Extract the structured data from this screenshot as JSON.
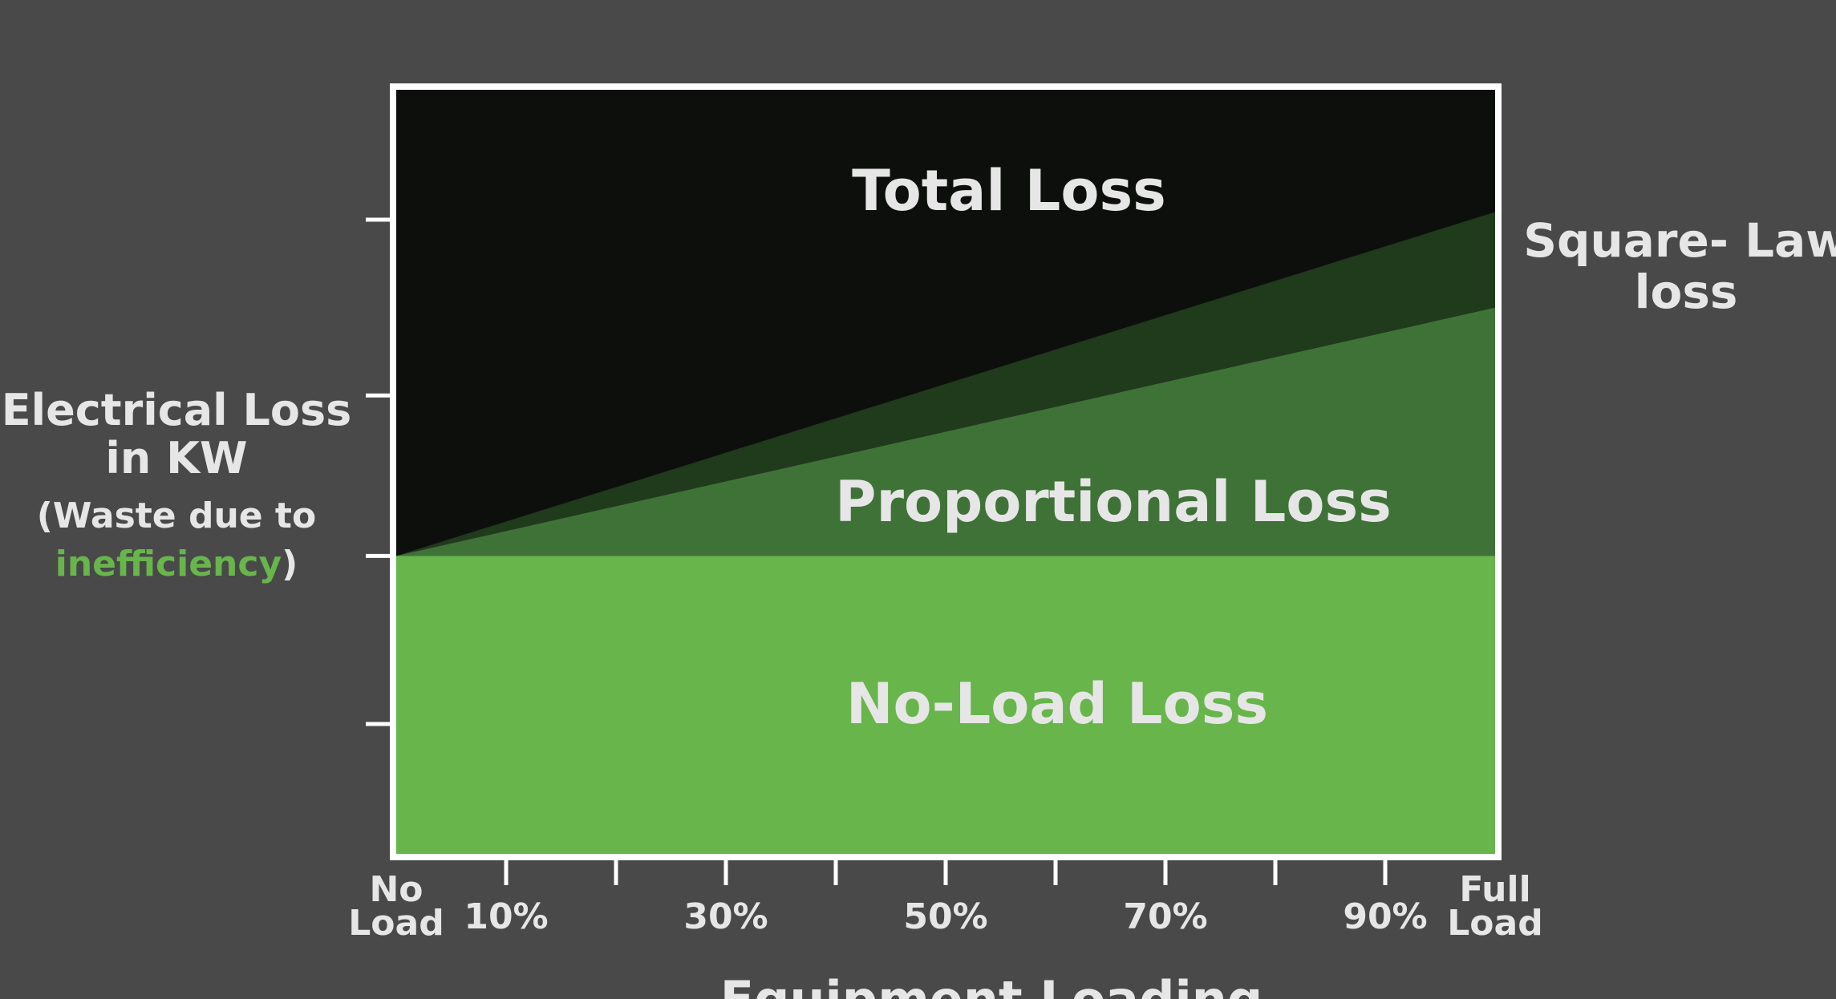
{
  "chart_data": {
    "type": "area",
    "title": "",
    "xlabel": "Equipment Loading",
    "ylabel": {
      "line1": "Electrical Loss",
      "line2": "in  KW",
      "line3": "(Waste due to",
      "highlight": "inefficiency",
      "line4_end": ")"
    },
    "x_ticks": [
      {
        "label_top": "No",
        "label_bottom": "Load",
        "value": 0
      },
      {
        "label": "10%",
        "value": 10
      },
      {
        "label": "",
        "value": 20
      },
      {
        "label": "30%",
        "value": 30
      },
      {
        "label": "",
        "value": 40
      },
      {
        "label": "50%",
        "value": 50
      },
      {
        "label": "",
        "value": 60
      },
      {
        "label": "70%",
        "value": 70
      },
      {
        "label": "",
        "value": 80
      },
      {
        "label": "90%",
        "value": 90
      },
      {
        "label_top": "Full",
        "label_bottom": "Load",
        "value": 100
      }
    ],
    "xlim": [
      0,
      100
    ],
    "ylim": [
      0,
      100
    ],
    "y_tick_values": [
      17,
      39,
      60,
      83
    ],
    "regions": [
      {
        "name": "No-Load Loss",
        "color": "#68b54b",
        "bottom": [
          0,
          0
        ],
        "top": [
          39,
          39
        ]
      },
      {
        "name": "Proportional Loss",
        "color": "#3f7237",
        "bottom": [
          39,
          39
        ],
        "top": [
          39,
          71.5
        ]
      },
      {
        "name": "Square-Law loss",
        "color": "#203a1c",
        "bottom": [
          39,
          71.5
        ],
        "top": [
          39,
          84
        ]
      },
      {
        "name": "Total Loss",
        "color": "#0d0f0c",
        "bottom": [
          39,
          84
        ],
        "top": [
          100,
          100
        ]
      }
    ],
    "labels": {
      "total": "Total Loss",
      "proportional": "Proportional Loss",
      "noload": "No-Load Loss",
      "square_line1": "Square- Law",
      "square_line2": "loss"
    },
    "colors": {
      "background": "#484948",
      "frame": "#ffffff",
      "text": "#e6e6e6",
      "highlight": "#68b54b"
    }
  }
}
